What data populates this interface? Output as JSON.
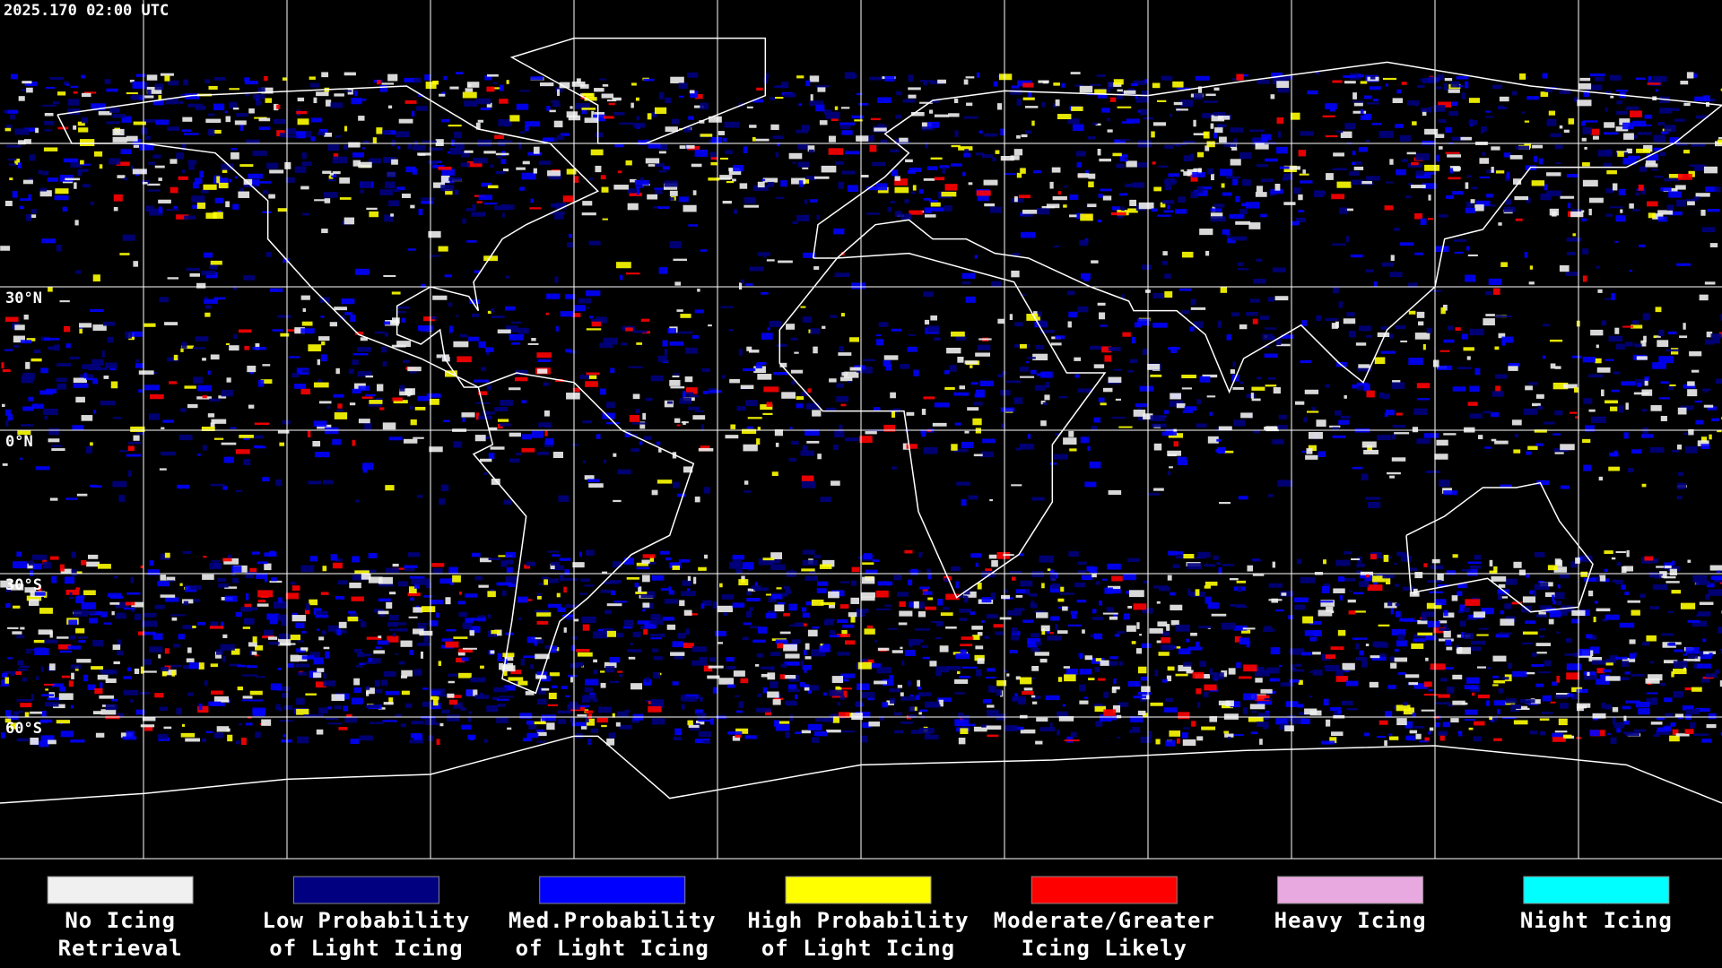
{
  "timestamp": "2025.170 02:00 UTC",
  "map": {
    "latitude_labels": [
      "30°N",
      "0°N",
      "30°S",
      "60°S"
    ]
  },
  "legend": {
    "items": [
      {
        "lines": [
          "No Icing",
          "Retrieval"
        ],
        "color": "#f0f0f0"
      },
      {
        "lines": [
          "Low Probability",
          "of Light Icing"
        ],
        "color": "#000080"
      },
      {
        "lines": [
          "Med.Probability",
          "of Light Icing"
        ],
        "color": "#0000ff"
      },
      {
        "lines": [
          "High Probability",
          "of Light Icing"
        ],
        "color": "#ffff00"
      },
      {
        "lines": [
          "Moderate/Greater",
          "Icing Likely"
        ],
        "color": "#ff0000"
      },
      {
        "lines": [
          "Heavy Icing"
        ],
        "color": "#e8a8e0"
      },
      {
        "lines": [
          "Night Icing"
        ],
        "color": "#00ffff"
      }
    ]
  }
}
